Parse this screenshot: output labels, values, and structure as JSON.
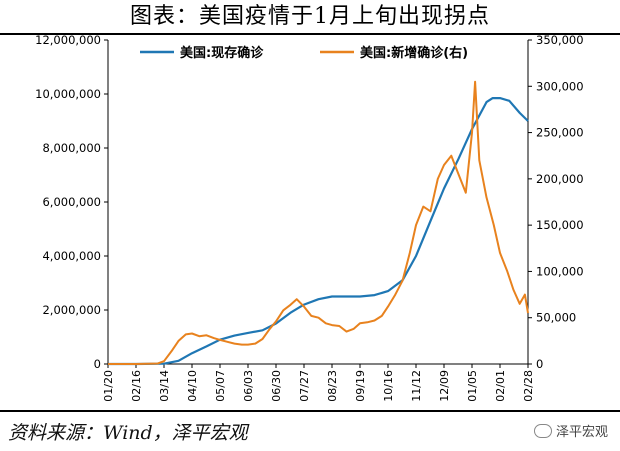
{
  "header": {
    "title": "图表：美国疫情于1月上旬出现拐点"
  },
  "footer": {
    "source": "资料来源：Wind，泽平宏观",
    "brand": "泽平宏观"
  },
  "chart_data": {
    "type": "line",
    "title": "图表：美国疫情于1月上旬出现拐点",
    "x_tick_labels": [
      "01/20",
      "02/16",
      "03/14",
      "04/10",
      "05/07",
      "06/03",
      "06/30",
      "07/27",
      "08/23",
      "09/19",
      "10/16",
      "11/12",
      "12/09",
      "01/05",
      "02/01",
      "02/28"
    ],
    "x_range": [
      "2020-01-20",
      "2021-02-28"
    ],
    "legend": {
      "placement": "top-center"
    },
    "y_left": {
      "range": [
        0,
        12000000
      ],
      "ticks": [
        0,
        2000000,
        4000000,
        6000000,
        8000000,
        10000000,
        12000000
      ],
      "tick_labels": [
        "0",
        "2,000,000",
        "4,000,000",
        "6,000,000",
        "8,000,000",
        "10,000,000",
        "12,000,000"
      ]
    },
    "y_right": {
      "range": [
        0,
        350000
      ],
      "ticks": [
        0,
        50000,
        100000,
        150000,
        200000,
        250000,
        300000,
        350000
      ],
      "tick_labels": [
        "0",
        "50,000",
        "100,000",
        "150,000",
        "200,000",
        "250,000",
        "300,000",
        "350,000"
      ]
    },
    "series": [
      {
        "name": "美国:现存确诊",
        "axis": "left",
        "color": "#1f77b4",
        "points": [
          [
            "2020-01-20",
            0
          ],
          [
            "2020-02-16",
            0
          ],
          [
            "2020-03-14",
            10000
          ],
          [
            "2020-03-28",
            120000
          ],
          [
            "2020-04-10",
            400000
          ],
          [
            "2020-04-24",
            650000
          ],
          [
            "2020-05-07",
            900000
          ],
          [
            "2020-05-21",
            1050000
          ],
          [
            "2020-06-03",
            1150000
          ],
          [
            "2020-06-17",
            1250000
          ],
          [
            "2020-06-30",
            1500000
          ],
          [
            "2020-07-14",
            1900000
          ],
          [
            "2020-07-27",
            2200000
          ],
          [
            "2020-08-10",
            2400000
          ],
          [
            "2020-08-23",
            2500000
          ],
          [
            "2020-09-06",
            2500000
          ],
          [
            "2020-09-19",
            2500000
          ],
          [
            "2020-10-03",
            2550000
          ],
          [
            "2020-10-16",
            2700000
          ],
          [
            "2020-10-30",
            3100000
          ],
          [
            "2020-11-12",
            4000000
          ],
          [
            "2020-11-26",
            5300000
          ],
          [
            "2020-12-09",
            6500000
          ],
          [
            "2020-12-23",
            7600000
          ],
          [
            "2021-01-05",
            8700000
          ],
          [
            "2021-01-19",
            9700000
          ],
          [
            "2021-01-25",
            9850000
          ],
          [
            "2021-02-01",
            9850000
          ],
          [
            "2021-02-10",
            9750000
          ],
          [
            "2021-02-20",
            9300000
          ],
          [
            "2021-02-28",
            9000000
          ]
        ]
      },
      {
        "name": "美国:新增确诊(右)",
        "axis": "right",
        "color": "#e8821e",
        "points": [
          [
            "2020-01-20",
            0
          ],
          [
            "2020-02-16",
            0
          ],
          [
            "2020-03-08",
            500
          ],
          [
            "2020-03-14",
            3000
          ],
          [
            "2020-03-22",
            15000
          ],
          [
            "2020-03-28",
            25000
          ],
          [
            "2020-04-04",
            32000
          ],
          [
            "2020-04-10",
            33000
          ],
          [
            "2020-04-17",
            30000
          ],
          [
            "2020-04-24",
            31000
          ],
          [
            "2020-05-01",
            28000
          ],
          [
            "2020-05-07",
            26000
          ],
          [
            "2020-05-14",
            24000
          ],
          [
            "2020-05-21",
            22000
          ],
          [
            "2020-05-28",
            21000
          ],
          [
            "2020-06-03",
            21000
          ],
          [
            "2020-06-10",
            22000
          ],
          [
            "2020-06-17",
            27000
          ],
          [
            "2020-06-24",
            38000
          ],
          [
            "2020-06-30",
            46000
          ],
          [
            "2020-07-07",
            58000
          ],
          [
            "2020-07-14",
            64000
          ],
          [
            "2020-07-20",
            70000
          ],
          [
            "2020-07-27",
            62000
          ],
          [
            "2020-08-03",
            52000
          ],
          [
            "2020-08-10",
            50000
          ],
          [
            "2020-08-17",
            44000
          ],
          [
            "2020-08-23",
            42000
          ],
          [
            "2020-08-30",
            41000
          ],
          [
            "2020-09-06",
            35000
          ],
          [
            "2020-09-13",
            38000
          ],
          [
            "2020-09-19",
            44000
          ],
          [
            "2020-09-26",
            45000
          ],
          [
            "2020-10-03",
            47000
          ],
          [
            "2020-10-10",
            52000
          ],
          [
            "2020-10-16",
            62000
          ],
          [
            "2020-10-23",
            75000
          ],
          [
            "2020-10-30",
            90000
          ],
          [
            "2020-11-06",
            120000
          ],
          [
            "2020-11-12",
            150000
          ],
          [
            "2020-11-19",
            170000
          ],
          [
            "2020-11-26",
            165000
          ],
          [
            "2020-12-03",
            200000
          ],
          [
            "2020-12-09",
            215000
          ],
          [
            "2020-12-16",
            225000
          ],
          [
            "2020-12-23",
            205000
          ],
          [
            "2020-12-30",
            185000
          ],
          [
            "2021-01-05",
            250000
          ],
          [
            "2021-01-08",
            305000
          ],
          [
            "2021-01-12",
            220000
          ],
          [
            "2021-01-19",
            180000
          ],
          [
            "2021-01-26",
            150000
          ],
          [
            "2021-02-01",
            120000
          ],
          [
            "2021-02-08",
            100000
          ],
          [
            "2021-02-14",
            80000
          ],
          [
            "2021-02-20",
            65000
          ],
          [
            "2021-02-25",
            75000
          ],
          [
            "2021-02-28",
            55000
          ]
        ]
      }
    ]
  }
}
